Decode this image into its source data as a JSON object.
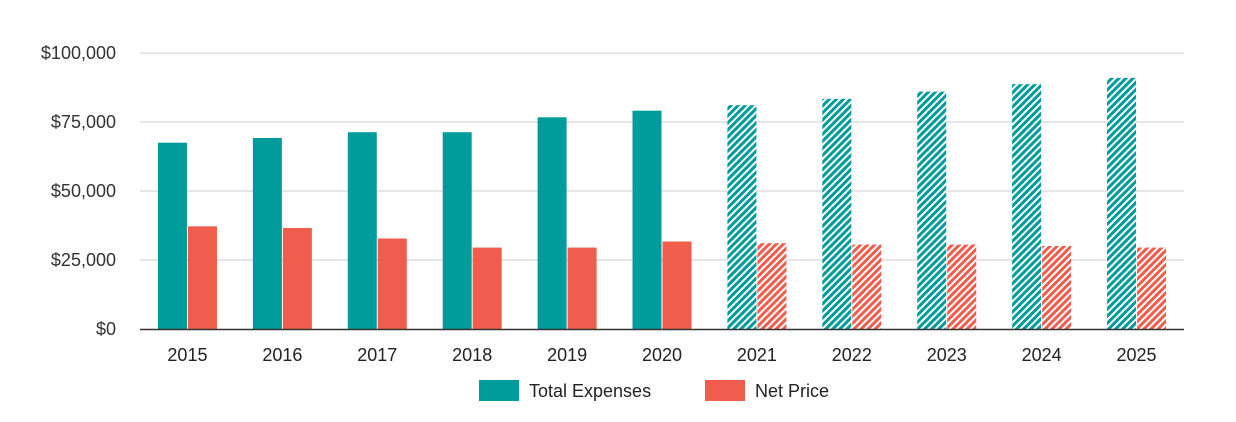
{
  "chart_data": {
    "type": "bar",
    "categories": [
      "2015",
      "2016",
      "2017",
      "2018",
      "2019",
      "2020",
      "2021",
      "2022",
      "2023",
      "2024",
      "2025"
    ],
    "series": [
      {
        "name": "Total Expenses",
        "color": "#009b9b",
        "values": [
          67500,
          69200,
          71300,
          71300,
          76700,
          79100,
          81100,
          83400,
          86000,
          88700,
          91000
        ]
      },
      {
        "name": "Net Price",
        "color": "#f05d4c",
        "values": [
          37200,
          36600,
          32800,
          29500,
          29500,
          31700,
          31100,
          30600,
          30600,
          30100,
          29500
        ]
      }
    ],
    "projected_from": "2021",
    "projected_style": "hatched",
    "ylim": [
      0,
      100000
    ],
    "yticks": [
      0,
      25000,
      50000,
      75000,
      100000
    ],
    "ytick_labels": [
      "$0",
      "$25,000",
      "$50,000",
      "$75,000",
      "$100,000"
    ],
    "grid": true,
    "legend_position": "bottom-center",
    "title": "",
    "xlabel": "",
    "ylabel": ""
  }
}
